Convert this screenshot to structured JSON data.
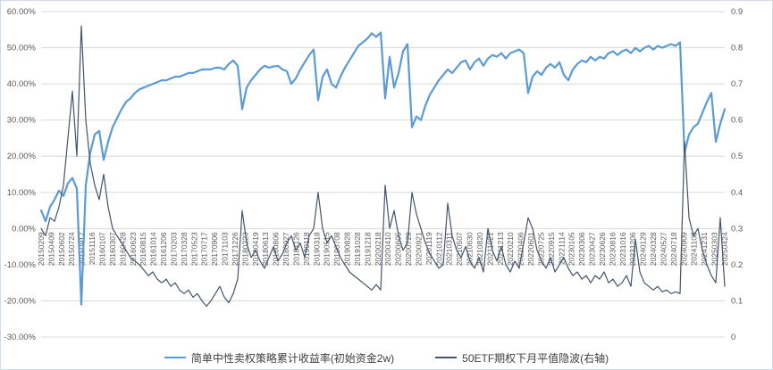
{
  "chart_data": {
    "type": "line",
    "title": "",
    "grid": "horizontal",
    "legend_position": "bottom",
    "left_axis": {
      "min": -30,
      "max": 60,
      "step": 10,
      "format": "percent",
      "ticks": [
        "60.00%",
        "50.00%",
        "40.00%",
        "30.00%",
        "20.00%",
        "10.00%",
        "0.00%",
        "-10.00%",
        "-20.00%",
        "-30.00%"
      ]
    },
    "right_axis": {
      "min": 0,
      "max": 0.9,
      "step": 0.1,
      "ticks": [
        "0.9",
        "0.8",
        "0.7",
        "0.6",
        "0.5",
        "0.4",
        "0.3",
        "0.2",
        "0.1",
        "0"
      ]
    },
    "x_labels": [
      "20150209",
      "20150409",
      "20150602",
      "20150724",
      "20150917",
      "20151116",
      "20160107",
      "20160307",
      "20160428",
      "20160623",
      "20160815",
      "20161014",
      "20161206",
      "20170203",
      "20170328",
      "20170523",
      "20170717",
      "20170906",
      "20171103",
      "20171226",
      "20180223",
      "20180419",
      "20180613",
      "20180806",
      "20180927",
      "20181126",
      "20190118",
      "20190318",
      "20190515",
      "20190708",
      "20190828",
      "20191028",
      "20191218",
      "20200218",
      "20200410",
      "20200605",
      "20200729",
      "20200921",
      "20201119",
      "20210112",
      "20210311",
      "20210507",
      "20210630",
      "20210820",
      "20211021",
      "20211213",
      "20220210",
      "20220406",
      "20220601",
      "20220725",
      "20220915",
      "20221114",
      "20230105",
      "20230306",
      "20230427",
      "20230626",
      "20230816",
      "20231016",
      "20231206",
      "20240129",
      "20240328",
      "20240527",
      "20240718",
      "20240909",
      "20241108",
      "20241231",
      "20250303",
      "20250424"
    ],
    "series": [
      {
        "name": "简单中性卖权策略累计收益率(初始资金2w)",
        "axis": "left",
        "color": "#5b9bd5",
        "stroke_width": 2.2,
        "values": [
          5,
          2,
          6,
          8,
          10.5,
          9,
          12.5,
          14,
          11,
          -21,
          12,
          21,
          26,
          27,
          19,
          24,
          28,
          30.5,
          33,
          35,
          36,
          37.5,
          38.5,
          39,
          39.5,
          40,
          40.5,
          41,
          41,
          41.5,
          42,
          42,
          42.5,
          43,
          43,
          43.5,
          44,
          44,
          44,
          44.5,
          44.5,
          44,
          45.5,
          46.5,
          45,
          33,
          39,
          41,
          42.5,
          44,
          45,
          44.5,
          44.8,
          45,
          44,
          43.5,
          40,
          41.5,
          44,
          46,
          48,
          49.5,
          35.5,
          42,
          44,
          40,
          39,
          42,
          44.5,
          46.5,
          48.5,
          50.5,
          51.5,
          52.5,
          54,
          53,
          54.2,
          36,
          47.5,
          39,
          43,
          49,
          51,
          28,
          31,
          30,
          34,
          37,
          39,
          41,
          42.5,
          44,
          43,
          44.5,
          46,
          46.5,
          44,
          46,
          47,
          45,
          47,
          48,
          47.5,
          48.5,
          47,
          48.5,
          49,
          49.5,
          48.5,
          37.5,
          42,
          43.5,
          42.5,
          44.5,
          45.5,
          44.5,
          46,
          42.5,
          41,
          44,
          45.5,
          46.5,
          46,
          47.5,
          46.5,
          47.5,
          47,
          48.5,
          49,
          48,
          49,
          49.5,
          48.5,
          50,
          49,
          50,
          50.5,
          49.5,
          50.5,
          50,
          50.5,
          51,
          50.5,
          51.5,
          21,
          26,
          28,
          29,
          32,
          35,
          37.5,
          24,
          29,
          33
        ]
      },
      {
        "name": "50ETF期权下月平值隐波(右轴)",
        "axis": "right",
        "color": "#44546a",
        "stroke_width": 1.2,
        "values": [
          0.3,
          0.28,
          0.33,
          0.32,
          0.36,
          0.42,
          0.55,
          0.68,
          0.5,
          0.86,
          0.6,
          0.48,
          0.42,
          0.38,
          0.45,
          0.36,
          0.3,
          0.28,
          0.26,
          0.24,
          0.22,
          0.21,
          0.2,
          0.185,
          0.17,
          0.18,
          0.16,
          0.15,
          0.16,
          0.14,
          0.15,
          0.13,
          0.12,
          0.13,
          0.11,
          0.12,
          0.1,
          0.085,
          0.1,
          0.12,
          0.14,
          0.11,
          0.095,
          0.12,
          0.16,
          0.35,
          0.26,
          0.22,
          0.24,
          0.21,
          0.19,
          0.22,
          0.25,
          0.21,
          0.23,
          0.26,
          0.28,
          0.24,
          0.26,
          0.22,
          0.28,
          0.3,
          0.4,
          0.3,
          0.26,
          0.28,
          0.25,
          0.22,
          0.2,
          0.18,
          0.17,
          0.16,
          0.15,
          0.14,
          0.13,
          0.145,
          0.13,
          0.42,
          0.3,
          0.35,
          0.28,
          0.24,
          0.26,
          0.4,
          0.34,
          0.3,
          0.26,
          0.23,
          0.21,
          0.19,
          0.2,
          0.37,
          0.28,
          0.24,
          0.22,
          0.25,
          0.21,
          0.19,
          0.22,
          0.18,
          0.3,
          0.24,
          0.21,
          0.25,
          0.2,
          0.18,
          0.21,
          0.19,
          0.26,
          0.33,
          0.3,
          0.24,
          0.21,
          0.19,
          0.22,
          0.18,
          0.2,
          0.22,
          0.19,
          0.17,
          0.18,
          0.16,
          0.17,
          0.15,
          0.17,
          0.16,
          0.18,
          0.15,
          0.16,
          0.14,
          0.15,
          0.17,
          0.14,
          0.27,
          0.18,
          0.15,
          0.14,
          0.13,
          0.14,
          0.125,
          0.13,
          0.12,
          0.125,
          0.12,
          0.54,
          0.33,
          0.28,
          0.3,
          0.24,
          0.2,
          0.17,
          0.15,
          0.33,
          0.14
        ]
      }
    ]
  },
  "colors": {
    "gridline": "#d9d9d9",
    "axis_label": "#595959",
    "border": "#cfdbe8",
    "background": "#ffffff"
  }
}
